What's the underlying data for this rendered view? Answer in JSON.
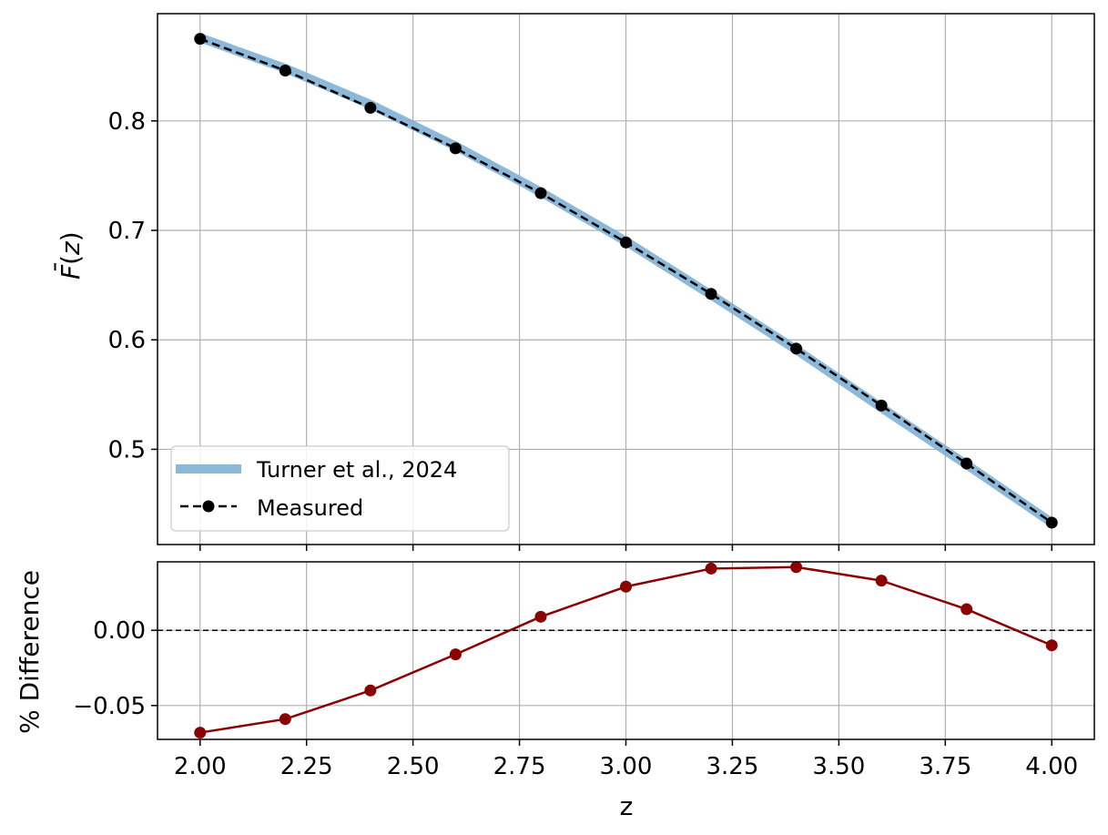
{
  "chart_data": [
    {
      "type": "line",
      "ylabel_main": "F",
      "ylabel_bar_mark": "¯",
      "ylabel_paren_open": "(",
      "ylabel_var": "z",
      "ylabel_paren_close": ")",
      "xlim": [
        1.9,
        4.1
      ],
      "ylim": [
        0.413,
        0.898
      ],
      "grid": true,
      "legend_position": "lower-left",
      "yticks": [
        0.5,
        0.6,
        0.7,
        0.8
      ],
      "ytick_labels": [
        "0.5",
        "0.6",
        "0.7",
        "0.8"
      ],
      "x": [
        2.0,
        2.2,
        2.4,
        2.6,
        2.8,
        3.0,
        3.2,
        3.4,
        3.6,
        3.8,
        4.0
      ],
      "series": [
        {
          "name": "Turner et al., 2024",
          "style": "thick-line",
          "color": "#7fb1d6",
          "values": [
            0.876,
            0.848,
            0.815,
            0.777,
            0.735,
            0.69,
            0.641,
            0.591,
            0.538,
            0.486,
            0.433
          ]
        },
        {
          "name": "Measured",
          "style": "dashed-line-with-markers",
          "color": "#000000",
          "values": [
            0.875,
            0.846,
            0.812,
            0.775,
            0.734,
            0.689,
            0.642,
            0.592,
            0.54,
            0.487,
            0.433
          ]
        }
      ]
    },
    {
      "type": "line",
      "ylabel": "% Difference",
      "xlabel": "z",
      "xlim": [
        1.9,
        4.1
      ],
      "ylim": [
        -0.0725,
        0.0455
      ],
      "grid": true,
      "reference_line": 0.0,
      "xticks": [
        2.0,
        2.25,
        2.5,
        2.75,
        3.0,
        3.25,
        3.5,
        3.75,
        4.0
      ],
      "xtick_labels": [
        "2.00",
        "2.25",
        "2.50",
        "2.75",
        "3.00",
        "3.25",
        "3.50",
        "3.75",
        "4.00"
      ],
      "yticks": [
        -0.05,
        0.0
      ],
      "ytick_labels": [
        "−0.05",
        "0.00"
      ],
      "x": [
        2.0,
        2.2,
        2.4,
        2.6,
        2.8,
        3.0,
        3.2,
        3.4,
        3.6,
        3.8,
        4.0
      ],
      "series": [
        {
          "color": "#8b0000",
          "style": "line-with-markers",
          "values": [
            -0.068,
            -0.059,
            -0.04,
            -0.016,
            0.009,
            0.029,
            0.041,
            0.042,
            0.033,
            0.014,
            -0.01
          ]
        }
      ]
    }
  ]
}
